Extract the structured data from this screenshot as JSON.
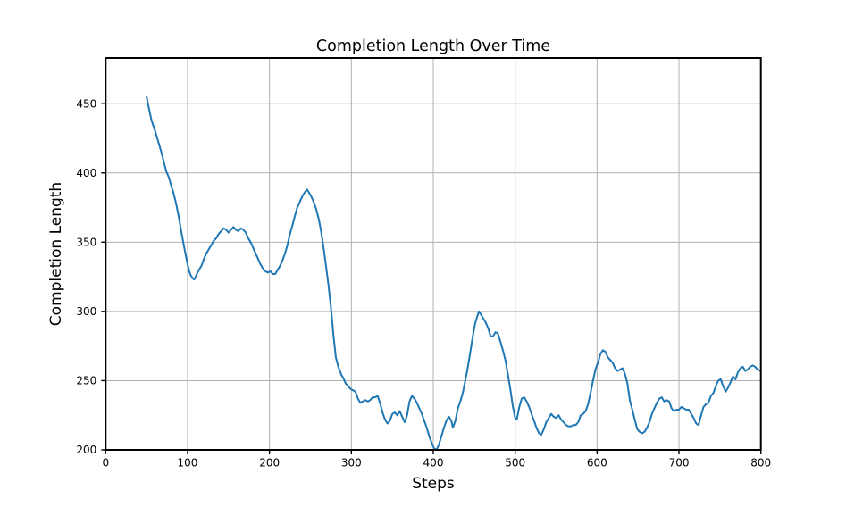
{
  "figure": {
    "background": "#ffffff"
  },
  "chart_data": {
    "type": "line",
    "title": "Completion Length Over Time",
    "xlabel": "Steps",
    "ylabel": "Completion Length",
    "xlim": [
      0,
      800
    ],
    "ylim": [
      200,
      483
    ],
    "xticks": [
      0,
      100,
      200,
      300,
      400,
      500,
      600,
      700,
      800
    ],
    "yticks": [
      200,
      250,
      300,
      350,
      400,
      450
    ],
    "grid": true,
    "grid_color": "#b0b0b0",
    "spine_color": "#000000",
    "legend": "none",
    "series": [
      {
        "name": "completion_length",
        "color": "#1f77b4",
        "line_width": 2,
        "points": [
          [
            50,
            455
          ],
          [
            53,
            446
          ],
          [
            56,
            438
          ],
          [
            60,
            431
          ],
          [
            64,
            423
          ],
          [
            68,
            415
          ],
          [
            71,
            408
          ],
          [
            74,
            401
          ],
          [
            77,
            397
          ],
          [
            80,
            391
          ],
          [
            83,
            385
          ],
          [
            86,
            378
          ],
          [
            89,
            369
          ],
          [
            92,
            359
          ],
          [
            95,
            349
          ],
          [
            98,
            340
          ],
          [
            100,
            334
          ],
          [
            102,
            329
          ],
          [
            104,
            326
          ],
          [
            106,
            324
          ],
          [
            108,
            323
          ],
          [
            110,
            325
          ],
          [
            112,
            328
          ],
          [
            114,
            330
          ],
          [
            117,
            333
          ],
          [
            120,
            338
          ],
          [
            123,
            342
          ],
          [
            126,
            345
          ],
          [
            129,
            348
          ],
          [
            132,
            351
          ],
          [
            135,
            353
          ],
          [
            138,
            356
          ],
          [
            141,
            358
          ],
          [
            144,
            360
          ],
          [
            147,
            359
          ],
          [
            150,
            357
          ],
          [
            153,
            359
          ],
          [
            156,
            361
          ],
          [
            159,
            359
          ],
          [
            162,
            358
          ],
          [
            165,
            360
          ],
          [
            168,
            359
          ],
          [
            171,
            357
          ],
          [
            174,
            353
          ],
          [
            177,
            350
          ],
          [
            180,
            346
          ],
          [
            183,
            342
          ],
          [
            186,
            338
          ],
          [
            189,
            334
          ],
          [
            192,
            331
          ],
          [
            195,
            329
          ],
          [
            198,
            328
          ],
          [
            201,
            329
          ],
          [
            204,
            327
          ],
          [
            207,
            327
          ],
          [
            210,
            330
          ],
          [
            213,
            333
          ],
          [
            216,
            337
          ],
          [
            219,
            342
          ],
          [
            222,
            348
          ],
          [
            225,
            356
          ],
          [
            228,
            362
          ],
          [
            231,
            369
          ],
          [
            234,
            375
          ],
          [
            237,
            379
          ],
          [
            240,
            383
          ],
          [
            243,
            386
          ],
          [
            246,
            388
          ],
          [
            248,
            386
          ],
          [
            251,
            383
          ],
          [
            254,
            379
          ],
          [
            257,
            374
          ],
          [
            260,
            367
          ],
          [
            263,
            358
          ],
          [
            266,
            346
          ],
          [
            269,
            333
          ],
          [
            272,
            319
          ],
          [
            275,
            303
          ],
          [
            278,
            283
          ],
          [
            281,
            267
          ],
          [
            284,
            260
          ],
          [
            286,
            257
          ],
          [
            288,
            254
          ],
          [
            290,
            252
          ],
          [
            293,
            248
          ],
          [
            296,
            246
          ],
          [
            299,
            244
          ],
          [
            302,
            243
          ],
          [
            305,
            242
          ],
          [
            308,
            237
          ],
          [
            311,
            234
          ],
          [
            314,
            235
          ],
          [
            317,
            236
          ],
          [
            320,
            235
          ],
          [
            323,
            236
          ],
          [
            326,
            238
          ],
          [
            329,
            238
          ],
          [
            332,
            239
          ],
          [
            335,
            234
          ],
          [
            338,
            227
          ],
          [
            341,
            222
          ],
          [
            344,
            219
          ],
          [
            347,
            221
          ],
          [
            350,
            226
          ],
          [
            353,
            227
          ],
          [
            356,
            225
          ],
          [
            359,
            228
          ],
          [
            362,
            224
          ],
          [
            365,
            220
          ],
          [
            368,
            225
          ],
          [
            371,
            235
          ],
          [
            374,
            239
          ],
          [
            377,
            237
          ],
          [
            380,
            234
          ],
          [
            383,
            230
          ],
          [
            386,
            226
          ],
          [
            389,
            221
          ],
          [
            392,
            216
          ],
          [
            395,
            210
          ],
          [
            398,
            205
          ],
          [
            401,
            201
          ],
          [
            404,
            200
          ],
          [
            407,
            204
          ],
          [
            410,
            210
          ],
          [
            413,
            216
          ],
          [
            416,
            221
          ],
          [
            419,
            224
          ],
          [
            422,
            221
          ],
          [
            424,
            216
          ],
          [
            427,
            221
          ],
          [
            430,
            230
          ],
          [
            433,
            235
          ],
          [
            436,
            241
          ],
          [
            439,
            250
          ],
          [
            442,
            259
          ],
          [
            445,
            270
          ],
          [
            448,
            281
          ],
          [
            451,
            291
          ],
          [
            454,
            297
          ],
          [
            456,
            300
          ],
          [
            458,
            298
          ],
          [
            461,
            295
          ],
          [
            464,
            292
          ],
          [
            467,
            288
          ],
          [
            470,
            282
          ],
          [
            473,
            282
          ],
          [
            476,
            285
          ],
          [
            479,
            284
          ],
          [
            482,
            278
          ],
          [
            485,
            272
          ],
          [
            488,
            265
          ],
          [
            491,
            255
          ],
          [
            494,
            244
          ],
          [
            497,
            232
          ],
          [
            500,
            223
          ],
          [
            502,
            222
          ],
          [
            505,
            231
          ],
          [
            508,
            237
          ],
          [
            511,
            238
          ],
          [
            514,
            235
          ],
          [
            517,
            231
          ],
          [
            520,
            226
          ],
          [
            523,
            221
          ],
          [
            526,
            216
          ],
          [
            529,
            212
          ],
          [
            532,
            211
          ],
          [
            535,
            215
          ],
          [
            538,
            220
          ],
          [
            541,
            223
          ],
          [
            544,
            226
          ],
          [
            547,
            224
          ],
          [
            550,
            223
          ],
          [
            553,
            225
          ],
          [
            556,
            222
          ],
          [
            559,
            220
          ],
          [
            562,
            218
          ],
          [
            565,
            217
          ],
          [
            568,
            217
          ],
          [
            571,
            218
          ],
          [
            574,
            218
          ],
          [
            577,
            220
          ],
          [
            580,
            225
          ],
          [
            583,
            226
          ],
          [
            586,
            228
          ],
          [
            589,
            233
          ],
          [
            592,
            241
          ],
          [
            595,
            250
          ],
          [
            598,
            258
          ],
          [
            601,
            263
          ],
          [
            604,
            269
          ],
          [
            607,
            272
          ],
          [
            610,
            271
          ],
          [
            613,
            267
          ],
          [
            616,
            265
          ],
          [
            619,
            263
          ],
          [
            622,
            259
          ],
          [
            625,
            257
          ],
          [
            628,
            258
          ],
          [
            631,
            259
          ],
          [
            634,
            255
          ],
          [
            637,
            248
          ],
          [
            640,
            236
          ],
          [
            643,
            229
          ],
          [
            646,
            222
          ],
          [
            649,
            215
          ],
          [
            652,
            213
          ],
          [
            655,
            212
          ],
          [
            658,
            213
          ],
          [
            661,
            216
          ],
          [
            664,
            220
          ],
          [
            667,
            226
          ],
          [
            670,
            230
          ],
          [
            673,
            234
          ],
          [
            676,
            237
          ],
          [
            679,
            238
          ],
          [
            682,
            235
          ],
          [
            685,
            236
          ],
          [
            688,
            235
          ],
          [
            691,
            230
          ],
          [
            694,
            228
          ],
          [
            697,
            229
          ],
          [
            700,
            229
          ],
          [
            703,
            231
          ],
          [
            706,
            230
          ],
          [
            709,
            229
          ],
          [
            712,
            229
          ],
          [
            715,
            226
          ],
          [
            718,
            223
          ],
          [
            721,
            219
          ],
          [
            724,
            218
          ],
          [
            727,
            225
          ],
          [
            730,
            231
          ],
          [
            733,
            233
          ],
          [
            736,
            234
          ],
          [
            739,
            239
          ],
          [
            742,
            241
          ],
          [
            745,
            246
          ],
          [
            748,
            250
          ],
          [
            751,
            251
          ],
          [
            754,
            246
          ],
          [
            757,
            242
          ],
          [
            760,
            245
          ],
          [
            763,
            249
          ],
          [
            766,
            253
          ],
          [
            769,
            251
          ],
          [
            772,
            256
          ],
          [
            775,
            259
          ],
          [
            778,
            260
          ],
          [
            781,
            257
          ],
          [
            784,
            258
          ],
          [
            787,
            260
          ],
          [
            790,
            261
          ],
          [
            793,
            260
          ],
          [
            796,
            258
          ],
          [
            800,
            257
          ]
        ]
      }
    ]
  }
}
